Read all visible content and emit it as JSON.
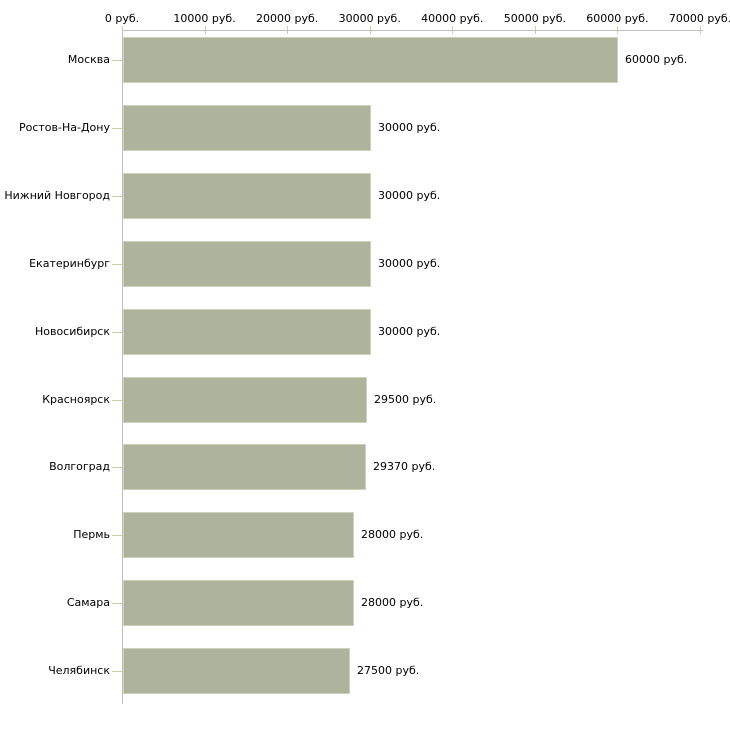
{
  "page": {
    "background": "#ffffff"
  },
  "chart_data": {
    "type": "bar",
    "orientation": "horizontal",
    "title": "",
    "unit": "руб.",
    "categories": [
      "Москва",
      "Ростов-На-Дону",
      "Нижний Новгород",
      "Екатеринбург",
      "Новосибирск",
      "Красноярск",
      "Волгоград",
      "Пермь",
      "Самара",
      "Челябинск"
    ],
    "values": [
      60000,
      30000,
      30000,
      30000,
      30000,
      29500,
      29370,
      28000,
      28000,
      27500
    ],
    "value_labels": [
      "60000 руб.",
      "30000 руб.",
      "30000 руб.",
      "30000 руб.",
      "30000 руб.",
      "29500 руб.",
      "29370 руб.",
      "28000 руб.",
      "28000 руб.",
      "27500 руб."
    ],
    "x_axis": {
      "position": "top",
      "min": 0,
      "max": 70000,
      "ticks": [
        0,
        10000,
        20000,
        30000,
        40000,
        50000,
        60000,
        70000
      ],
      "tick_labels": [
        "0 руб.",
        "10000 руб.",
        "20000 руб.",
        "30000 руб.",
        "40000 руб.",
        "50000 руб.",
        "60000 руб.",
        "70000 руб."
      ]
    },
    "grid": false,
    "legend": false,
    "colors": {
      "bar": "#adb49b",
      "bar_border": "#ced1bb",
      "axis_line": "#c0c0c0",
      "tick": "#cfcfa5",
      "text": "#000000"
    }
  }
}
